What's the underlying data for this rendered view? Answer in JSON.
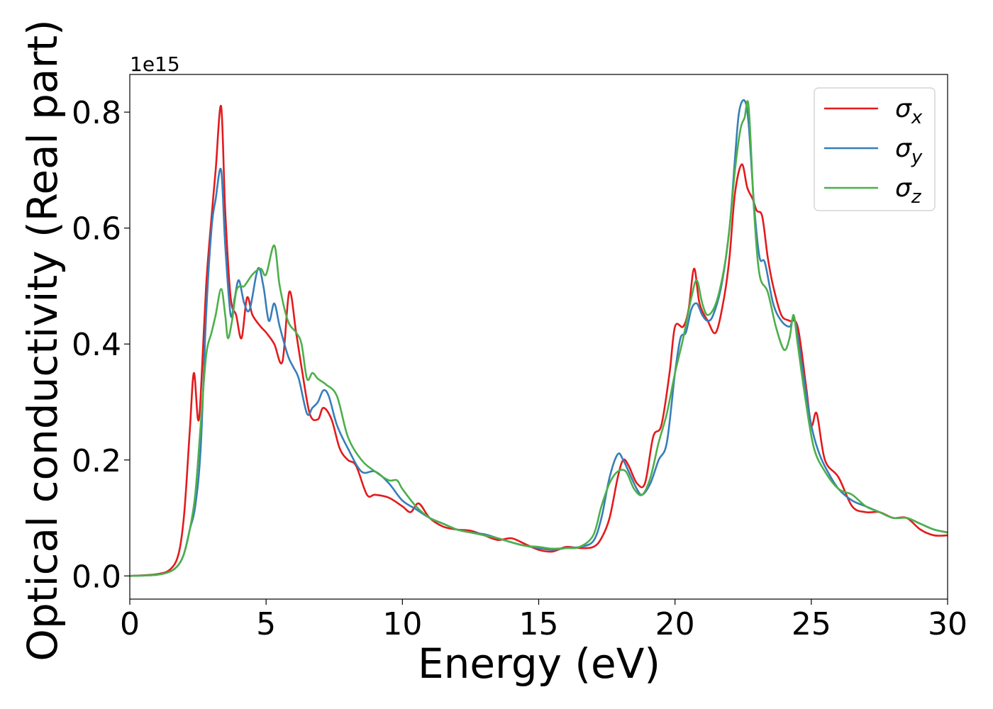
{
  "chart_data": {
    "type": "line",
    "xlabel": "Energy (eV)",
    "ylabel": "Optical conductivity (Real part)",
    "y_offset_label": "1e15",
    "xlim": [
      0,
      30
    ],
    "ylim": [
      -0.04,
      0.865
    ],
    "x_ticks": [
      0,
      5,
      10,
      15,
      20,
      25,
      30
    ],
    "x_tick_labels": [
      "0",
      "5",
      "10",
      "15",
      "20",
      "25",
      "30"
    ],
    "y_ticks": [
      0.0,
      0.2,
      0.4,
      0.6,
      0.8
    ],
    "y_tick_labels": [
      "0.0",
      "0.2",
      "0.4",
      "0.6",
      "0.8"
    ],
    "grid": false,
    "legend_position": "top-right",
    "series": [
      {
        "name": "σx",
        "symbol": "σ",
        "subscript": "x",
        "color": "#e41a1c",
        "x": [
          0,
          1,
          1.5,
          1.8,
          2.0,
          2.2,
          2.35,
          2.5,
          2.6,
          2.8,
          3.0,
          3.15,
          3.35,
          3.5,
          3.7,
          3.9,
          4.1,
          4.3,
          4.5,
          4.8,
          5.0,
          5.3,
          5.6,
          5.85,
          6.1,
          6.3,
          6.6,
          6.9,
          7.1,
          7.4,
          7.7,
          8.0,
          8.3,
          8.7,
          9.0,
          9.5,
          10.0,
          10.3,
          10.6,
          11.0,
          11.5,
          12.0,
          12.5,
          13.0,
          13.5,
          14.0,
          14.5,
          15.0,
          15.5,
          16.0,
          16.5,
          17.0,
          17.3,
          17.6,
          17.9,
          18.1,
          18.3,
          18.6,
          18.9,
          19.2,
          19.5,
          19.8,
          20.0,
          20.3,
          20.5,
          20.7,
          20.9,
          21.2,
          21.5,
          21.8,
          22.0,
          22.2,
          22.45,
          22.65,
          22.85,
          23.0,
          23.2,
          23.4,
          23.6,
          23.9,
          24.2,
          24.5,
          24.8,
          25.0,
          25.2,
          25.5,
          26.0,
          26.5,
          27.0,
          27.5,
          28.0,
          28.5,
          29.0,
          29.5,
          30.0
        ],
        "y": [
          0.0,
          0.003,
          0.012,
          0.04,
          0.11,
          0.25,
          0.35,
          0.27,
          0.31,
          0.5,
          0.62,
          0.7,
          0.81,
          0.63,
          0.48,
          0.45,
          0.41,
          0.48,
          0.45,
          0.43,
          0.42,
          0.4,
          0.37,
          0.49,
          0.42,
          0.36,
          0.28,
          0.27,
          0.29,
          0.27,
          0.22,
          0.2,
          0.19,
          0.14,
          0.14,
          0.135,
          0.12,
          0.11,
          0.125,
          0.1,
          0.085,
          0.08,
          0.078,
          0.07,
          0.062,
          0.065,
          0.055,
          0.045,
          0.042,
          0.05,
          0.048,
          0.05,
          0.065,
          0.1,
          0.17,
          0.2,
          0.19,
          0.16,
          0.16,
          0.24,
          0.26,
          0.35,
          0.43,
          0.43,
          0.46,
          0.53,
          0.47,
          0.44,
          0.42,
          0.48,
          0.55,
          0.66,
          0.71,
          0.67,
          0.65,
          0.63,
          0.62,
          0.55,
          0.5,
          0.45,
          0.44,
          0.43,
          0.33,
          0.26,
          0.28,
          0.2,
          0.17,
          0.12,
          0.11,
          0.11,
          0.1,
          0.1,
          0.08,
          0.07,
          0.07
        ]
      },
      {
        "name": "σy",
        "symbol": "σ",
        "subscript": "y",
        "color": "#377eb8",
        "x": [
          0,
          1,
          1.5,
          1.8,
          2.0,
          2.2,
          2.4,
          2.6,
          2.8,
          3.0,
          3.15,
          3.35,
          3.5,
          3.7,
          3.85,
          4.0,
          4.2,
          4.4,
          4.7,
          4.9,
          5.1,
          5.3,
          5.5,
          5.8,
          6.0,
          6.2,
          6.5,
          6.7,
          6.9,
          7.1,
          7.3,
          7.6,
          8.0,
          8.5,
          9.0,
          9.5,
          10.0,
          10.5,
          11.0,
          11.5,
          12.0,
          12.5,
          13.0,
          13.5,
          14.0,
          14.5,
          15.0,
          15.5,
          16.0,
          16.5,
          17.0,
          17.3,
          17.6,
          17.9,
          18.1,
          18.3,
          18.6,
          18.8,
          19.1,
          19.4,
          19.7,
          20.0,
          20.2,
          20.4,
          20.6,
          20.8,
          21.0,
          21.2,
          21.4,
          21.7,
          22.0,
          22.2,
          22.35,
          22.55,
          22.7,
          22.9,
          23.1,
          23.3,
          23.6,
          23.9,
          24.2,
          24.4,
          24.7,
          25.0,
          25.3,
          25.6,
          26.0,
          26.5,
          27.0,
          27.5,
          28.0,
          28.5,
          29.0,
          29.5,
          30.0
        ],
        "y": [
          0.0,
          0.002,
          0.008,
          0.02,
          0.04,
          0.08,
          0.12,
          0.22,
          0.45,
          0.6,
          0.65,
          0.7,
          0.57,
          0.45,
          0.48,
          0.51,
          0.47,
          0.46,
          0.53,
          0.5,
          0.44,
          0.47,
          0.43,
          0.38,
          0.36,
          0.34,
          0.28,
          0.29,
          0.3,
          0.32,
          0.31,
          0.26,
          0.22,
          0.18,
          0.18,
          0.16,
          0.13,
          0.115,
          0.1,
          0.09,
          0.08,
          0.075,
          0.072,
          0.065,
          0.058,
          0.052,
          0.048,
          0.045,
          0.048,
          0.05,
          0.06,
          0.1,
          0.17,
          0.21,
          0.2,
          0.18,
          0.15,
          0.14,
          0.16,
          0.2,
          0.23,
          0.35,
          0.41,
          0.42,
          0.46,
          0.47,
          0.45,
          0.44,
          0.45,
          0.5,
          0.6,
          0.72,
          0.8,
          0.82,
          0.78,
          0.64,
          0.55,
          0.54,
          0.47,
          0.44,
          0.43,
          0.44,
          0.35,
          0.26,
          0.21,
          0.18,
          0.15,
          0.13,
          0.12,
          0.11,
          0.1,
          0.1,
          0.09,
          0.08,
          0.075
        ]
      },
      {
        "name": "σz",
        "symbol": "σ",
        "subscript": "z",
        "color": "#4daf4a",
        "x": [
          0,
          1,
          1.5,
          1.8,
          2.0,
          2.2,
          2.4,
          2.6,
          2.8,
          3.0,
          3.15,
          3.35,
          3.5,
          3.6,
          3.75,
          3.9,
          4.05,
          4.2,
          4.5,
          4.8,
          5.0,
          5.3,
          5.5,
          5.8,
          6.1,
          6.3,
          6.5,
          6.7,
          6.9,
          7.2,
          7.6,
          8.0,
          8.5,
          9.0,
          9.5,
          9.8,
          10.0,
          10.5,
          11.0,
          11.5,
          12.0,
          12.5,
          13.0,
          13.5,
          14.0,
          14.5,
          15.0,
          15.5,
          16.0,
          16.5,
          17.0,
          17.3,
          17.6,
          17.9,
          18.2,
          18.5,
          18.8,
          19.1,
          19.4,
          19.7,
          20.0,
          20.3,
          20.6,
          20.8,
          21.0,
          21.2,
          21.5,
          21.8,
          22.0,
          22.2,
          22.4,
          22.55,
          22.7,
          22.9,
          23.1,
          23.4,
          23.7,
          24.0,
          24.2,
          24.35,
          24.5,
          24.8,
          25.1,
          25.5,
          26.0,
          26.5,
          27.0,
          27.5,
          28.0,
          28.5,
          29.0,
          29.5,
          30.0
        ],
        "y": [
          0.0,
          0.002,
          0.008,
          0.02,
          0.04,
          0.08,
          0.14,
          0.26,
          0.38,
          0.42,
          0.45,
          0.495,
          0.45,
          0.41,
          0.44,
          0.49,
          0.5,
          0.5,
          0.52,
          0.53,
          0.52,
          0.57,
          0.5,
          0.44,
          0.42,
          0.4,
          0.34,
          0.35,
          0.34,
          0.33,
          0.31,
          0.24,
          0.2,
          0.18,
          0.165,
          0.165,
          0.15,
          0.12,
          0.1,
          0.09,
          0.08,
          0.075,
          0.07,
          0.065,
          0.058,
          0.052,
          0.05,
          0.047,
          0.048,
          0.05,
          0.07,
          0.12,
          0.16,
          0.18,
          0.18,
          0.15,
          0.14,
          0.17,
          0.23,
          0.28,
          0.35,
          0.41,
          0.48,
          0.51,
          0.47,
          0.45,
          0.47,
          0.53,
          0.6,
          0.7,
          0.77,
          0.79,
          0.81,
          0.63,
          0.52,
          0.49,
          0.43,
          0.39,
          0.41,
          0.45,
          0.4,
          0.3,
          0.22,
          0.18,
          0.15,
          0.14,
          0.12,
          0.11,
          0.1,
          0.1,
          0.09,
          0.08,
          0.075
        ]
      }
    ]
  }
}
